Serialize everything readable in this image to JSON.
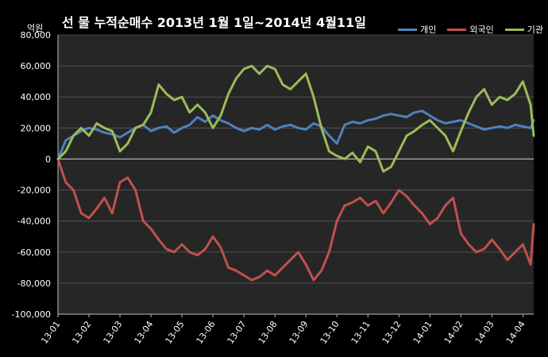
{
  "chart_data": {
    "type": "line",
    "title": "선 물  누적순매수 2013년 1월 1일~2014년 4월11일",
    "ylabel": "억원",
    "xlabel": "",
    "ylim": [
      -100000,
      80000
    ],
    "yticks": [
      80000,
      60000,
      40000,
      20000,
      0,
      -20000,
      -40000,
      -60000,
      -80000,
      -100000
    ],
    "ytick_labels": [
      "80,000",
      "60,000",
      "40,000",
      "20,000",
      "0",
      "-20,000",
      "-40,000",
      "-60,000",
      "-80,000",
      "-100,000"
    ],
    "x_labels": [
      "13-01",
      "13-02",
      "13-03",
      "13-04",
      "13-05",
      "13-06",
      "13-07",
      "13-08",
      "13-09",
      "13-10",
      "13-11",
      "13-12",
      "14-01",
      "14-02",
      "14-03",
      "14-04"
    ],
    "x": [
      0.0,
      0.25,
      0.5,
      0.75,
      1.0,
      1.25,
      1.5,
      1.75,
      2.0,
      2.25,
      2.5,
      2.75,
      3.0,
      3.25,
      3.5,
      3.75,
      4.0,
      4.25,
      4.5,
      4.75,
      5.0,
      5.25,
      5.5,
      5.75,
      6.0,
      6.25,
      6.5,
      6.75,
      7.0,
      7.25,
      7.5,
      7.75,
      8.0,
      8.25,
      8.5,
      8.75,
      9.0,
      9.25,
      9.5,
      9.75,
      10.0,
      10.25,
      10.5,
      10.75,
      11.0,
      11.25,
      11.5,
      11.75,
      12.0,
      12.25,
      12.5,
      12.75,
      13.0,
      13.25,
      13.5,
      13.75,
      14.0,
      14.25,
      14.5,
      14.75,
      15.0,
      15.25,
      15.35
    ],
    "grid": true,
    "legend_position": "top-right",
    "series": [
      {
        "name": "개인",
        "color": "#4f81bd",
        "values": [
          0,
          12000,
          15000,
          18000,
          20000,
          19000,
          17000,
          16000,
          14000,
          17000,
          20000,
          22000,
          18000,
          20000,
          21000,
          17000,
          20000,
          22000,
          27000,
          24000,
          28000,
          25000,
          23000,
          20000,
          18000,
          20000,
          19000,
          22000,
          19000,
          21000,
          22000,
          20000,
          19000,
          23000,
          21000,
          15000,
          10000,
          22000,
          24000,
          23000,
          25000,
          26000,
          28000,
          29000,
          28000,
          27000,
          30000,
          31000,
          28000,
          25000,
          23000,
          24000,
          25000,
          23000,
          21000,
          19000,
          20000,
          21000,
          20000,
          22000,
          21000,
          20000,
          25000
        ]
      },
      {
        "name": "외국인",
        "color": "#c0504d",
        "values": [
          0,
          -15000,
          -20000,
          -35000,
          -38000,
          -32000,
          -25000,
          -35000,
          -15000,
          -12000,
          -20000,
          -40000,
          -45000,
          -52000,
          -58000,
          -60000,
          -55000,
          -60000,
          -62000,
          -58000,
          -50000,
          -57000,
          -70000,
          -72000,
          -75000,
          -78000,
          -76000,
          -72000,
          -75000,
          -70000,
          -65000,
          -60000,
          -68000,
          -78000,
          -72000,
          -60000,
          -40000,
          -30000,
          -28000,
          -25000,
          -30000,
          -27000,
          -35000,
          -28000,
          -20000,
          -24000,
          -30000,
          -35000,
          -42000,
          -38000,
          -30000,
          -25000,
          -48000,
          -55000,
          -60000,
          -58000,
          -52000,
          -58000,
          -65000,
          -60000,
          -55000,
          -68000,
          -42000
        ]
      },
      {
        "name": "기관",
        "color": "#9bbb59",
        "values": [
          0,
          5000,
          15000,
          20000,
          15000,
          23000,
          20000,
          18000,
          5000,
          10000,
          20000,
          22000,
          30000,
          48000,
          42000,
          38000,
          40000,
          30000,
          35000,
          30000,
          20000,
          28000,
          42000,
          52000,
          58000,
          60000,
          55000,
          60000,
          58000,
          48000,
          45000,
          50000,
          55000,
          40000,
          20000,
          5000,
          2000,
          0,
          4000,
          -2000,
          8000,
          5000,
          -8000,
          -5000,
          5000,
          15000,
          18000,
          22000,
          25000,
          20000,
          15000,
          5000,
          18000,
          30000,
          40000,
          45000,
          35000,
          40000,
          38000,
          42000,
          50000,
          35000,
          15000
        ]
      }
    ]
  }
}
